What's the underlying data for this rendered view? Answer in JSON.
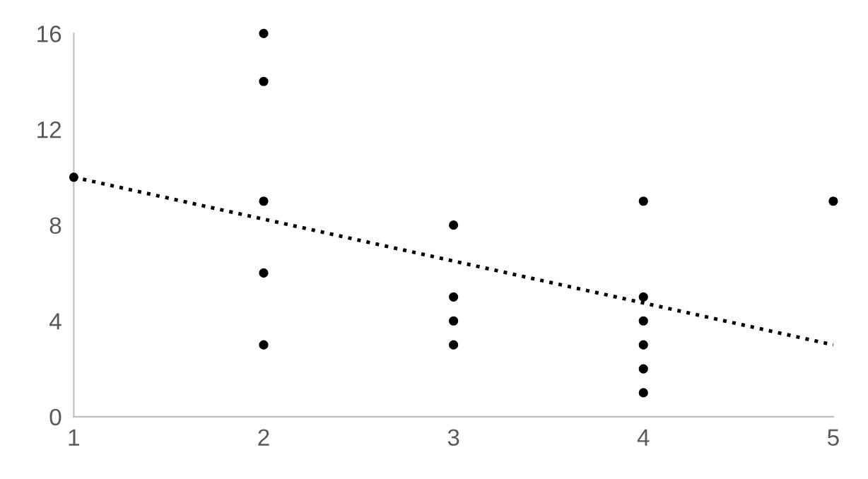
{
  "chart_data": {
    "type": "scatter",
    "xlim": [
      1,
      5
    ],
    "xticks": [
      1,
      2,
      3,
      4,
      5
    ],
    "ylim": [
      0,
      16
    ],
    "yticks": [
      0,
      4,
      8,
      12,
      16
    ],
    "grid": false,
    "legend": false,
    "series": [
      {
        "color": "#000000",
        "marker": "circle",
        "x": [
          1,
          2,
          2,
          2,
          2,
          2,
          3,
          3,
          3,
          3,
          4,
          4,
          4,
          4,
          4,
          4,
          5
        ],
        "values": [
          10,
          16,
          14,
          9,
          6,
          3,
          8,
          5,
          4,
          3,
          9,
          5,
          4,
          3,
          2,
          1,
          9
        ]
      },
      {
        "type": "line",
        "color": "#000000",
        "line_style": "dotted",
        "marker": "none",
        "x": [
          1,
          5
        ],
        "values": [
          10,
          3
        ]
      }
    ]
  }
}
